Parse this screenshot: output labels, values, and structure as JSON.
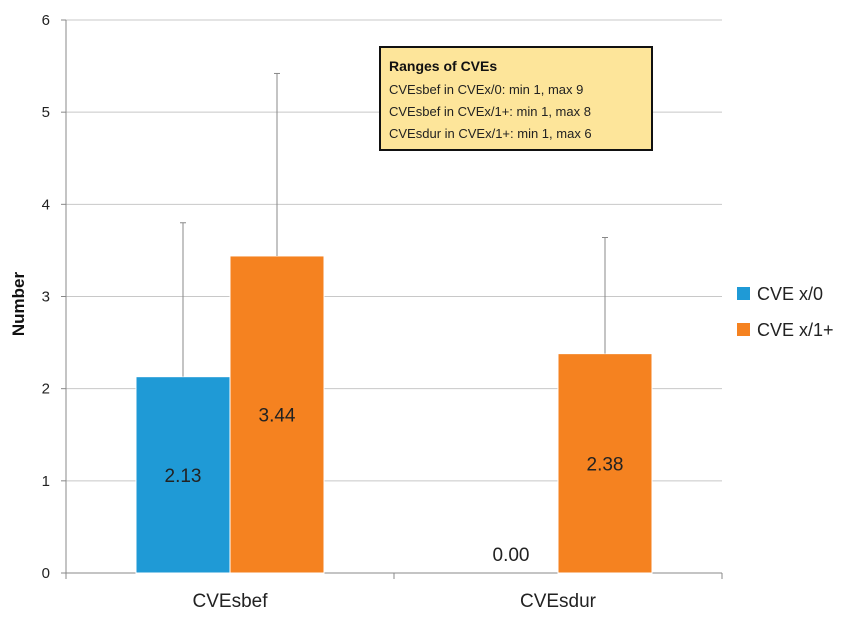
{
  "chart_data": {
    "type": "bar",
    "title": "",
    "xlabel": "",
    "ylabel": "Number",
    "ylim": [
      0,
      6
    ],
    "yticks": [
      0,
      1,
      2,
      3,
      4,
      5,
      6
    ],
    "grid": true,
    "categories": [
      "CVEsbef",
      "CVEsdur"
    ],
    "series": [
      {
        "name": "CVE x/0",
        "color": "#1f9ad6",
        "values": [
          2.13,
          0.0
        ],
        "labels": [
          "2.13",
          "0.00"
        ],
        "error_upper": [
          3.8,
          null
        ]
      },
      {
        "name": "CVE x/1+",
        "color": "#f58220",
        "values": [
          3.44,
          2.38
        ],
        "labels": [
          "3.44",
          "2.38"
        ],
        "error_upper": [
          5.42,
          3.64
        ]
      }
    ],
    "legend_position": "right",
    "annotation": {
      "title": "Ranges of CVEs",
      "lines": [
        "CVEsbef in CVEx/0: min 1, max 9",
        "CVEsbef in CVEx/1+: min 1, max 8",
        "CVEsdur in CVEx/1+: min 1, max 6"
      ],
      "fill": "#fde59a",
      "border": "#111111"
    }
  }
}
